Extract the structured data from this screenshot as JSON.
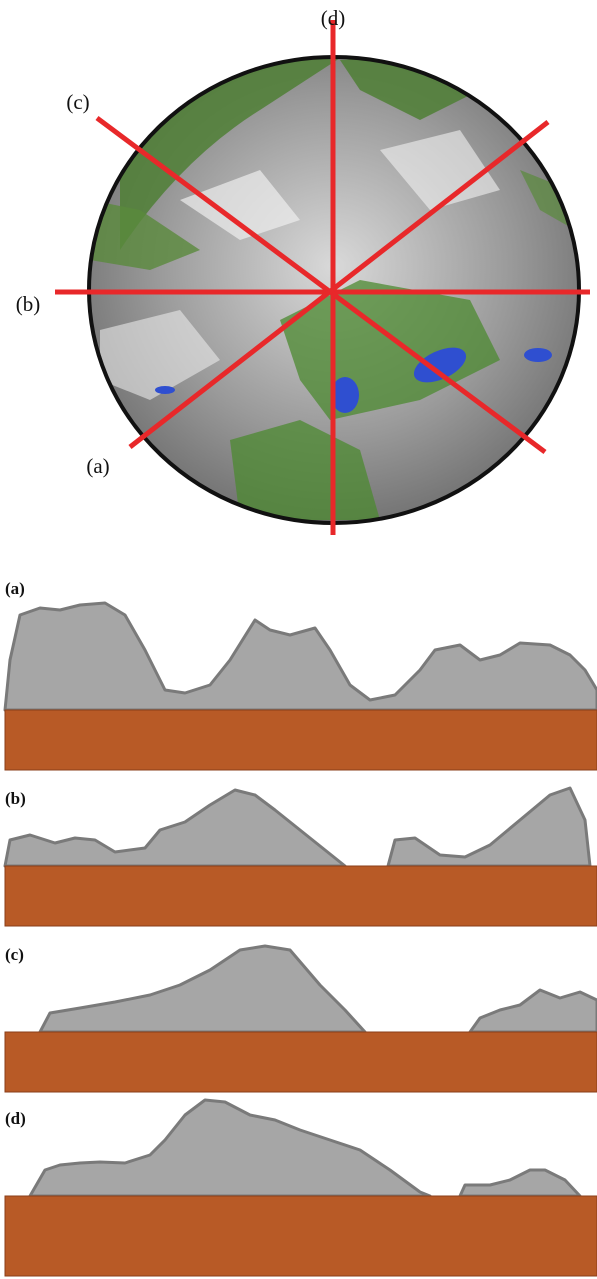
{
  "circle_labels": {
    "a": "(a)",
    "b": "(b)",
    "c": "(c)",
    "d": "(d)"
  },
  "profiles": [
    {
      "label": "(a)"
    },
    {
      "label": "(b)"
    },
    {
      "label": "(c)"
    },
    {
      "label": "(d)"
    }
  ]
}
